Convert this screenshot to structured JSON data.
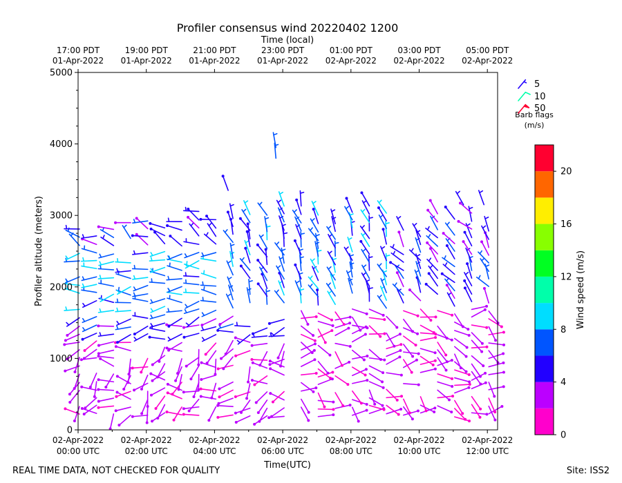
{
  "header": {
    "title": "Profiler consensus wind 20220402 1200",
    "top_axis_label": "Time (local)"
  },
  "footer": {
    "notice": "REAL TIME DATA, NOT CHECKED FOR QUALITY",
    "site": "Site: ISS2"
  },
  "legend": {
    "items": [
      {
        "label": "5",
        "color": "#2200ff"
      },
      {
        "label": "10",
        "color": "#00ffaa"
      },
      {
        "label": "50",
        "color": "#ff0030"
      }
    ],
    "title_line1": "Barb flags",
    "title_line2": "(m/s)"
  },
  "colorbar": {
    "label": "Wind speed (m/s)",
    "bounds": [
      0,
      2,
      4,
      6,
      8,
      10,
      12,
      14,
      16,
      18,
      20,
      22
    ],
    "colors": [
      "#ff00cc",
      "#bb00ff",
      "#2200ff",
      "#0055ff",
      "#00ddff",
      "#00ffaa",
      "#00ff22",
      "#88ff00",
      "#ffee00",
      "#ff6600",
      "#ff0030"
    ],
    "tick_values": [
      0,
      4,
      8,
      12,
      16,
      20
    ],
    "tick_labels": [
      "0",
      "4",
      "8",
      "12",
      "16",
      "20"
    ]
  },
  "chart_data": {
    "type": "wind_barbs",
    "title": "Profiler consensus wind 20220402 1200",
    "xlabel": "Time(UTC)",
    "ylabel": "Profiler altitude (meters)",
    "top_xlabel": "Time (local)",
    "xlim_hours": [
      0,
      12.3
    ],
    "ylim": [
      0,
      5000
    ],
    "x_ticks": [
      {
        "hour": 0,
        "line1": "02-Apr-2022",
        "line2": "00:00 UTC"
      },
      {
        "hour": 2,
        "line1": "02-Apr-2022",
        "line2": "02:00 UTC"
      },
      {
        "hour": 4,
        "line1": "02-Apr-2022",
        "line2": "04:00 UTC"
      },
      {
        "hour": 6,
        "line1": "02-Apr-2022",
        "line2": "06:00 UTC"
      },
      {
        "hour": 8,
        "line1": "02-Apr-2022",
        "line2": "08:00 UTC"
      },
      {
        "hour": 10,
        "line1": "02-Apr-2022",
        "line2": "10:00 UTC"
      },
      {
        "hour": 12,
        "line1": "02-Apr-2022",
        "line2": "12:00 UTC"
      }
    ],
    "top_ticks": [
      {
        "hour": 0,
        "line1": "17:00 PDT",
        "line2": "01-Apr-2022"
      },
      {
        "hour": 2,
        "line1": "19:00 PDT",
        "line2": "01-Apr-2022"
      },
      {
        "hour": 4,
        "line1": "21:00 PDT",
        "line2": "01-Apr-2022"
      },
      {
        "hour": 6,
        "line1": "23:00 PDT",
        "line2": "01-Apr-2022"
      },
      {
        "hour": 8,
        "line1": "01:00 PDT",
        "line2": "02-Apr-2022"
      },
      {
        "hour": 10,
        "line1": "03:00 PDT",
        "line2": "02-Apr-2022"
      },
      {
        "hour": 12,
        "line1": "05:00 PDT",
        "line2": "02-Apr-2022"
      }
    ],
    "y_ticks": [
      {
        "value": 0,
        "label": "0"
      },
      {
        "value": 1000,
        "label": "1000"
      },
      {
        "value": 2000,
        "label": "2000"
      },
      {
        "value": 3000,
        "label": "3000"
      },
      {
        "value": 4000,
        "label": "4000"
      },
      {
        "value": 5000,
        "label": "5000"
      }
    ],
    "grid": false,
    "legend_position": "upper-right-outside",
    "profiles_time_step_hours": 0.5,
    "layer_regimes": [
      {
        "hours": [
          0,
          6.2
        ],
        "alt": [
          0,
          1250
        ],
        "speed": [
          1.5,
          4
        ],
        "dir_deg": [
          180,
          300
        ]
      },
      {
        "hours": [
          0,
          6.2
        ],
        "alt": [
          1250,
          1600
        ],
        "speed": [
          3,
          6.5
        ],
        "dir_deg": [
          230,
          290
        ]
      },
      {
        "hours": [
          0,
          4.5
        ],
        "alt": [
          1600,
          2500
        ],
        "speed": [
          5.5,
          9.5
        ],
        "dir_deg": [
          240,
          290
        ]
      },
      {
        "hours": [
          0,
          6.2
        ],
        "alt": [
          2500,
          3100
        ],
        "speed": [
          3,
          6.5
        ],
        "dir_deg": [
          260,
          330
        ]
      },
      {
        "hours": [
          4.5,
          9.5
        ],
        "alt": [
          1700,
          3200
        ],
        "speed": [
          4,
          9
        ],
        "dir_deg": [
          320,
          360
        ]
      },
      {
        "hours": [
          6.2,
          12.3
        ],
        "alt": [
          0,
          1700
        ],
        "speed": [
          1,
          4
        ],
        "dir_deg": [
          60,
          160
        ]
      },
      {
        "hours": [
          9.5,
          12.3
        ],
        "alt": [
          1700,
          3100
        ],
        "speed": [
          3,
          7
        ],
        "dir_deg": [
          300,
          350
        ]
      }
    ]
  }
}
